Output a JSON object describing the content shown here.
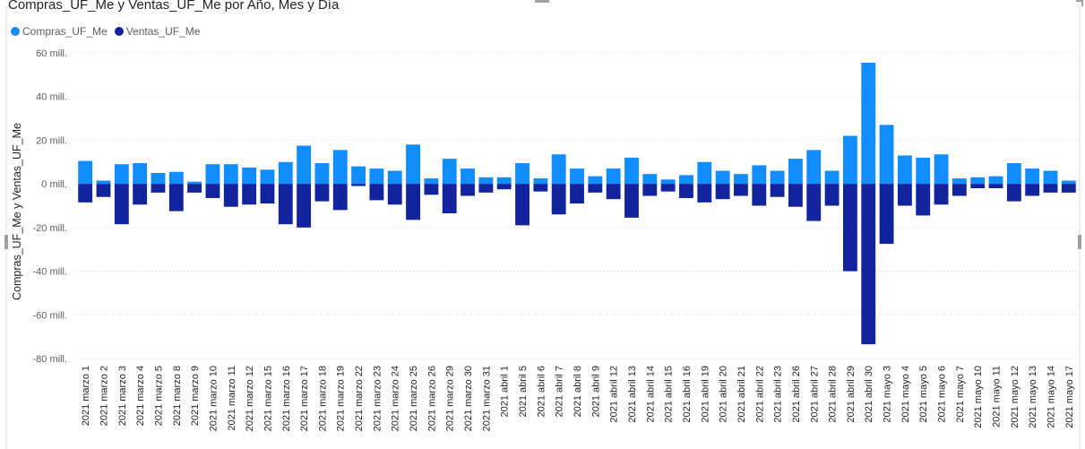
{
  "title": "Compras_UF_Me y Ventas_UF_Me por Año, Mes y Día",
  "legend": {
    "items": [
      {
        "label": "Compras_UF_Me",
        "color": "#118dff"
      },
      {
        "label": "Ventas_UF_Me",
        "color": "#12239e"
      }
    ]
  },
  "colors": {
    "compras": "#118dff",
    "ventas": "#12239e",
    "grid": "#d0d0d0"
  },
  "chart_data": {
    "type": "bar",
    "stacked": true,
    "title": "Compras_UF_Me y Ventas_UF_Me por Año, Mes y Día",
    "ylabel": "Compras_UF_Me y Ventas_UF_Me",
    "xlabel": "",
    "ylim": [
      -80,
      60
    ],
    "unit": "mill.",
    "yticks": [
      60,
      40,
      20,
      0,
      -20,
      -40,
      -60,
      -80
    ],
    "ytick_labels": [
      "60 mill.",
      "40 mill.",
      "20 mill.",
      "0 mill.",
      "-20 mill.",
      "-40 mill.",
      "-60 mill.",
      "-80 mill."
    ],
    "grid": true,
    "legend_position": "top-left",
    "categories": [
      "2021 marzo 1",
      "2021 marzo 2",
      "2021 marzo 3",
      "2021 marzo 4",
      "2021 marzo 5",
      "2021 marzo 8",
      "2021 marzo 9",
      "2021 marzo 10",
      "2021 marzo 11",
      "2021 marzo 12",
      "2021 marzo 15",
      "2021 marzo 16",
      "2021 marzo 17",
      "2021 marzo 18",
      "2021 marzo 19",
      "2021 marzo 22",
      "2021 marzo 23",
      "2021 marzo 24",
      "2021 marzo 25",
      "2021 marzo 26",
      "2021 marzo 29",
      "2021 marzo 30",
      "2021 marzo 31",
      "2021 abril 1",
      "2021 abril 5",
      "2021 abril 6",
      "2021 abril 7",
      "2021 abril 8",
      "2021 abril 9",
      "2021 abril 12",
      "2021 abril 13",
      "2021 abril 14",
      "2021 abril 15",
      "2021 abril 16",
      "2021 abril 19",
      "2021 abril 20",
      "2021 abril 21",
      "2021 abril 22",
      "2021 abril 23",
      "2021 abril 26",
      "2021 abril 27",
      "2021 abril 28",
      "2021 abril 29",
      "2021 abril 30",
      "2021 mayo 3",
      "2021 mayo 4",
      "2021 mayo 5",
      "2021 mayo 6",
      "2021 mayo 7",
      "2021 mayo 10",
      "2021 mayo 11",
      "2021 mayo 12",
      "2021 mayo 13",
      "2021 mayo 14",
      "2021 mayo 17"
    ],
    "series": [
      {
        "name": "Compras_UF_Me",
        "color": "#118dff",
        "values": [
          10.5,
          1.5,
          9,
          9.5,
          5,
          5.5,
          1,
          9,
          9,
          7.5,
          6.5,
          10,
          17.5,
          9.5,
          15.5,
          8,
          7,
          6,
          18,
          2.5,
          11.5,
          7,
          3,
          3,
          9.5,
          2.5,
          13.5,
          7,
          3.5,
          7,
          12,
          4.5,
          2,
          4,
          10,
          6,
          4.5,
          8.5,
          6,
          11.5,
          15.5,
          6,
          22,
          55.5,
          27,
          13,
          12,
          13.5,
          2.5,
          3,
          3.5,
          9.5,
          7,
          6,
          1.5
        ]
      },
      {
        "name": "Ventas_UF_Me",
        "color": "#12239e",
        "values": [
          -8.5,
          -6,
          -18.5,
          -9.5,
          -4,
          -12.5,
          -4,
          -6.5,
          -10.5,
          -9.5,
          -9,
          -18.5,
          -20,
          -8,
          -12,
          -1,
          -7.5,
          -9.5,
          -16.5,
          -5,
          -13.5,
          -5.5,
          -4,
          -2.5,
          -19,
          -3.5,
          -14,
          -9,
          -4,
          -7,
          -15.5,
          -5.5,
          -3.5,
          -6.5,
          -8.5,
          -7,
          -5.5,
          -10,
          -6,
          -10.5,
          -17,
          -10,
          -40,
          -73.5,
          -27.5,
          -10,
          -14.5,
          -9.5,
          -5.5,
          -2,
          -2,
          -8,
          -5.5,
          -4,
          -4
        ]
      }
    ]
  }
}
